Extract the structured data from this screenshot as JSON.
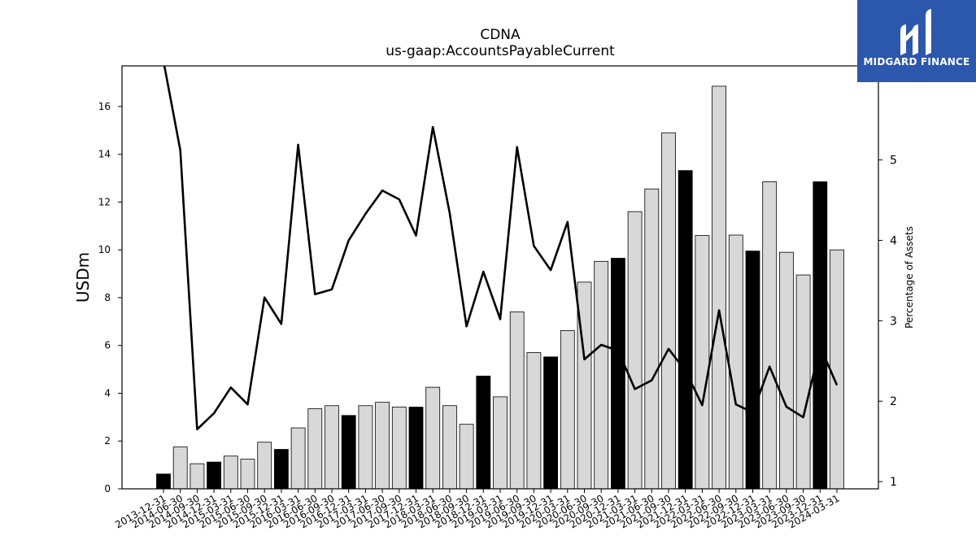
{
  "chart_data": {
    "type": "bar",
    "title": "CDNA",
    "subtitle": "us-gaap:AccountsPayableCurrent",
    "ylabel": "USDm",
    "y2label": "Percentage of Assets",
    "ylim": [
      0,
      17.7
    ],
    "y2lim": [
      0.91,
      6.17
    ],
    "yticks": [
      0,
      2,
      4,
      6,
      8,
      10,
      12,
      14,
      16
    ],
    "y2ticks": [
      1,
      2,
      3,
      4,
      5
    ],
    "categories": [
      "2013-12-31",
      "2014-06-30",
      "2014-09-30",
      "2014-12-31",
      "2015-03-31",
      "2015-06-30",
      "2015-09-30",
      "2015-12-31",
      "2016-03-31",
      "2016-06-30",
      "2016-09-30",
      "2016-12-31",
      "2017-03-31",
      "2017-06-30",
      "2017-09-30",
      "2017-12-31",
      "2018-03-31",
      "2018-06-30",
      "2018-09-30",
      "2018-12-31",
      "2019-03-31",
      "2019-06-30",
      "2019-09-30",
      "2019-12-31",
      "2020-03-31",
      "2020-06-30",
      "2020-09-30",
      "2020-12-31",
      "2021-03-31",
      "2021-06-30",
      "2021-09-30",
      "2021-12-31",
      "2022-03-31",
      "2022-06-30",
      "2022-09-30",
      "2022-12-31",
      "2023-03-31",
      "2023-06-30",
      "2023-09-30",
      "2023-12-31",
      "2024-03-31"
    ],
    "series": [
      {
        "values": [
          0.62,
          1.75,
          1.05,
          1.12,
          1.37,
          1.24,
          1.95,
          1.65,
          2.55,
          3.35,
          3.48,
          3.07,
          3.48,
          3.62,
          3.42,
          3.42,
          4.25,
          3.48,
          2.7,
          4.72,
          3.85,
          7.4,
          5.7,
          5.52,
          6.62,
          8.65,
          9.52,
          9.65,
          11.6,
          12.55,
          14.9,
          13.32,
          10.6,
          16.85,
          10.62,
          9.95,
          12.85,
          9.9,
          8.95,
          12.85,
          10.0
        ]
      },
      {
        "axis": "right",
        "values": [
          6.23,
          5.12,
          1.65,
          1.85,
          2.17,
          1.96,
          3.29,
          2.96,
          5.19,
          3.33,
          3.39,
          4.0,
          4.33,
          4.62,
          4.51,
          4.06,
          5.41,
          4.34,
          2.93,
          3.61,
          3.02,
          5.16,
          3.93,
          3.63,
          4.23,
          2.52,
          2.7,
          2.63,
          2.15,
          2.26,
          2.65,
          2.38,
          1.95,
          3.13,
          1.96,
          1.86,
          2.43,
          1.93,
          1.8,
          2.68,
          2.2
        ]
      }
    ],
    "highlight_categories": [
      "2013-12-31",
      "2014-12-31",
      "2015-12-31",
      "2016-12-31",
      "2017-12-31",
      "2018-12-31",
      "2019-12-31",
      "2020-12-31",
      "2021-12-31",
      "2022-12-31",
      "2023-12-31"
    ],
    "colors": {
      "bar_light": "#d8d8d8",
      "bar_dark": "#000000",
      "line": "#000000"
    },
    "grid": false,
    "legend": "none"
  },
  "logo": {
    "text": "MIDGARD FINANCE",
    "bg": "#2b57ad"
  }
}
